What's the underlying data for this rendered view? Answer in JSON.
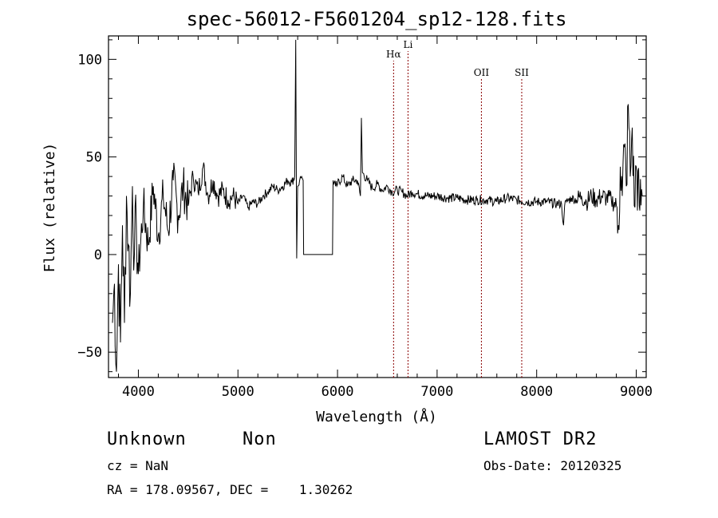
{
  "chart_data": {
    "type": "line",
    "title": "spec-56012-F5601204_sp12-128.fits",
    "xlabel": "Wavelength (Å)",
    "ylabel": "Flux (relative)",
    "xlim": [
      3700,
      9100
    ],
    "ylim": [
      -63,
      112
    ],
    "xticks": [
      4000,
      5000,
      6000,
      7000,
      8000,
      9000
    ],
    "yticks": [
      -50,
      0,
      50,
      100
    ],
    "grid": false,
    "line_color": "#000000",
    "marker_color": "#8b0000",
    "spectral_lines": [
      {
        "name": "Hα",
        "wavelength": 6563
      },
      {
        "name": "Li",
        "wavelength": 6708
      },
      {
        "name": "OII",
        "wavelength": 7445
      },
      {
        "name": "SII",
        "wavelength": 7850
      }
    ],
    "series": [
      {
        "x": [
          3740,
          3760,
          3780,
          3800,
          3820,
          3840,
          3860,
          3880,
          3900,
          3920,
          3940,
          3960,
          3980,
          4000,
          4050,
          4100,
          4150,
          4200,
          4250,
          4300,
          4350,
          4400,
          4450,
          4500,
          4550,
          4600,
          4650,
          4700,
          4750,
          4800,
          4850,
          4900,
          4950,
          5000,
          5050,
          5100,
          5150,
          5200,
          5250,
          5300,
          5350,
          5400,
          5450,
          5500,
          5540,
          5570,
          5580,
          5590,
          5600,
          5620,
          5640,
          5655,
          5660,
          5700,
          5800,
          5900,
          5950,
          5955,
          5980,
          6000,
          6050,
          6100,
          6150,
          6200,
          6230,
          6240,
          6250,
          6300,
          6350,
          6400,
          6450,
          6500,
          6550,
          6600,
          6650,
          6700,
          6750,
          6800,
          6900,
          7000,
          7100,
          7200,
          7300,
          7400,
          7500,
          7600,
          7700,
          7800,
          7900,
          8000,
          8100,
          8200,
          8250,
          8270,
          8280,
          8300,
          8350,
          8400,
          8450,
          8500,
          8550,
          8600,
          8650,
          8700,
          8750,
          8800,
          8820,
          8840,
          8860,
          8880,
          8900,
          8920,
          8940,
          8960,
          8980,
          9000,
          9030,
          9060
        ],
        "y": [
          -35,
          -15,
          -60,
          -5,
          -45,
          15,
          -35,
          30,
          5,
          -20,
          35,
          0,
          15,
          -10,
          25,
          5,
          35,
          10,
          30,
          12,
          38,
          20,
          35,
          25,
          40,
          32,
          45,
          30,
          38,
          30,
          33,
          28,
          30,
          26,
          30,
          24,
          27,
          26,
          30,
          32,
          35,
          33,
          35,
          38,
          37,
          40,
          110,
          -2,
          35,
          38,
          40,
          38,
          0,
          0,
          0,
          0,
          0,
          38,
          35,
          36,
          40,
          35,
          38,
          38,
          30,
          70,
          42,
          38,
          34,
          36,
          33,
          35,
          32,
          33,
          32,
          30,
          32,
          31,
          30,
          30,
          29,
          29,
          28,
          28,
          28,
          27,
          29,
          28,
          27,
          27,
          27,
          26,
          26,
          15,
          25,
          27,
          29,
          28,
          30,
          27,
          30,
          28,
          30,
          29,
          28,
          25,
          15,
          45,
          30,
          55,
          35,
          77,
          40,
          65,
          25,
          45,
          25,
          30
        ]
      }
    ]
  },
  "info": {
    "class": "Unknown",
    "subclass": "Non",
    "survey": "LAMOST DR2",
    "cz": "cz = NaN",
    "obs_date": "Obs-Date: 20120325",
    "coords": "RA = 178.09567, DEC =    1.30262"
  }
}
